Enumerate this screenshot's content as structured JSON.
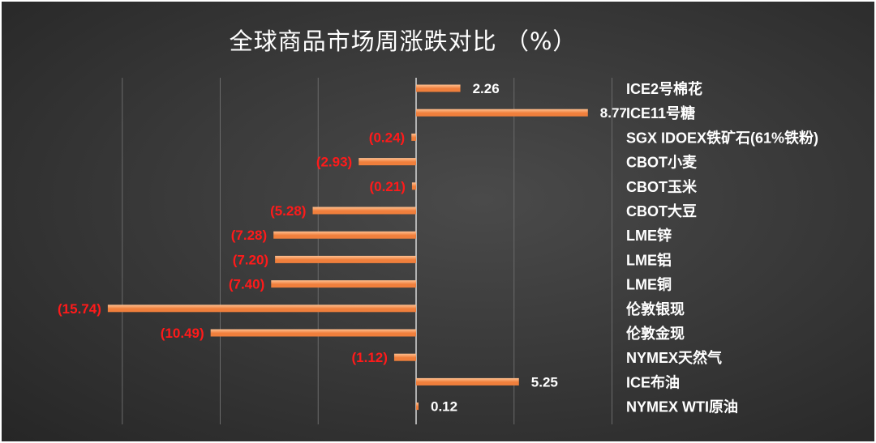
{
  "chart_data": {
    "type": "bar",
    "orientation": "horizontal",
    "title": "全球商品市场周涨跌对比  （%）",
    "categories": [
      "ICE2号棉花",
      "ICE11号糖",
      "SGX IDOEX铁矿石(61%铁粉)",
      "CBOT小麦",
      "CBOT玉米",
      "CBOT大豆",
      "LME锌",
      "LME铝",
      "LME铜",
      "伦敦银现",
      "伦敦金现",
      "NYMEX天然气",
      "ICE布油",
      "NYMEX WTI原油"
    ],
    "values": [
      2.26,
      8.77,
      -0.24,
      -2.93,
      -0.21,
      -5.28,
      -7.28,
      -7.2,
      -7.4,
      -15.74,
      -10.49,
      -1.12,
      5.25,
      0.12
    ],
    "labels": [
      "2.26",
      "8.77",
      "(0.24)",
      "(2.93)",
      "(0.21)",
      "(5.28)",
      "(7.28)",
      "(7.20)",
      "(7.40)",
      "(15.74)",
      "(10.49)",
      "(1.12)",
      "5.25",
      "0.12"
    ],
    "xlim": [
      -16,
      10
    ],
    "grid": true,
    "legend": "none",
    "colors": {
      "bar": "#f07f3c",
      "bar_light": "#ffc090",
      "positive_label": "#ffffff",
      "negative_label": "#ff1a1a",
      "category_label": "#ffffff",
      "gridline": "#6a6a6a",
      "axis": "#d8d8d8"
    }
  }
}
